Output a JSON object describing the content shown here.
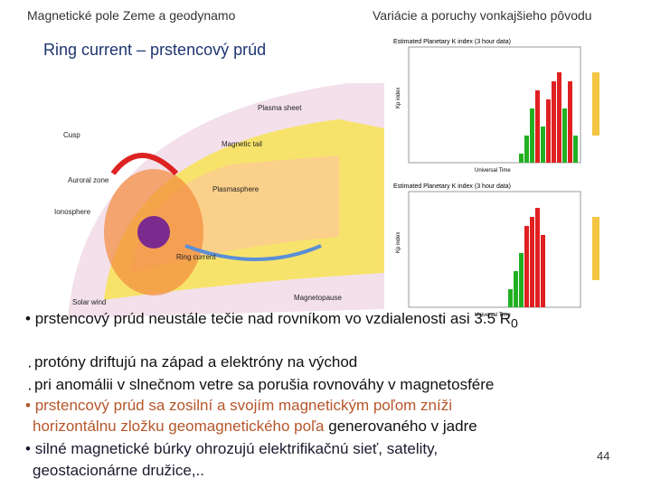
{
  "header": {
    "left": "Magnetické pole Zeme a geodynamo",
    "right": "Variácie a poruchy vonkajšieho pôvodu"
  },
  "title": "Ring current – prstencový prúd",
  "diagram": {
    "labels": [
      "Magnetopause",
      "Solar wind",
      "Cusp",
      "Auroral zone",
      "Ionosphere",
      "Ring current",
      "Plasmasphere",
      "Magnetic tail",
      "Plasma sheet"
    ]
  },
  "kp_charts": {
    "title": "Estimated Planetary K index (3 hour data)",
    "x_label": "Universal Time",
    "y_label": "Kp index"
  },
  "bullets": [
    {
      "parts": [
        "prstencový prúd neustále tečie nad rovníkom vo vzdialenosti asi 3.5 R"
      ],
      "subscript": "0"
    },
    {
      "parts": [
        "protóny driftujú na západ a elektróny na východ"
      ]
    },
    {
      "parts": [
        "pri anomálii v slnečnom vetre sa porušia rovnováhy v magnetosfére"
      ]
    },
    {
      "parts": [
        "prstencový prúd sa zosilní a svojím magnetickým poľom zníži",
        "horizontálnu zložku geomagnetického poľa",
        " generovaného v jadre"
      ]
    },
    {
      "parts": [
        "silné magnetické búrky ohrozujú elektrifikačnú sieť, satelity,",
        "geostacionárne družice,.."
      ]
    }
  ],
  "page_number": "44"
}
